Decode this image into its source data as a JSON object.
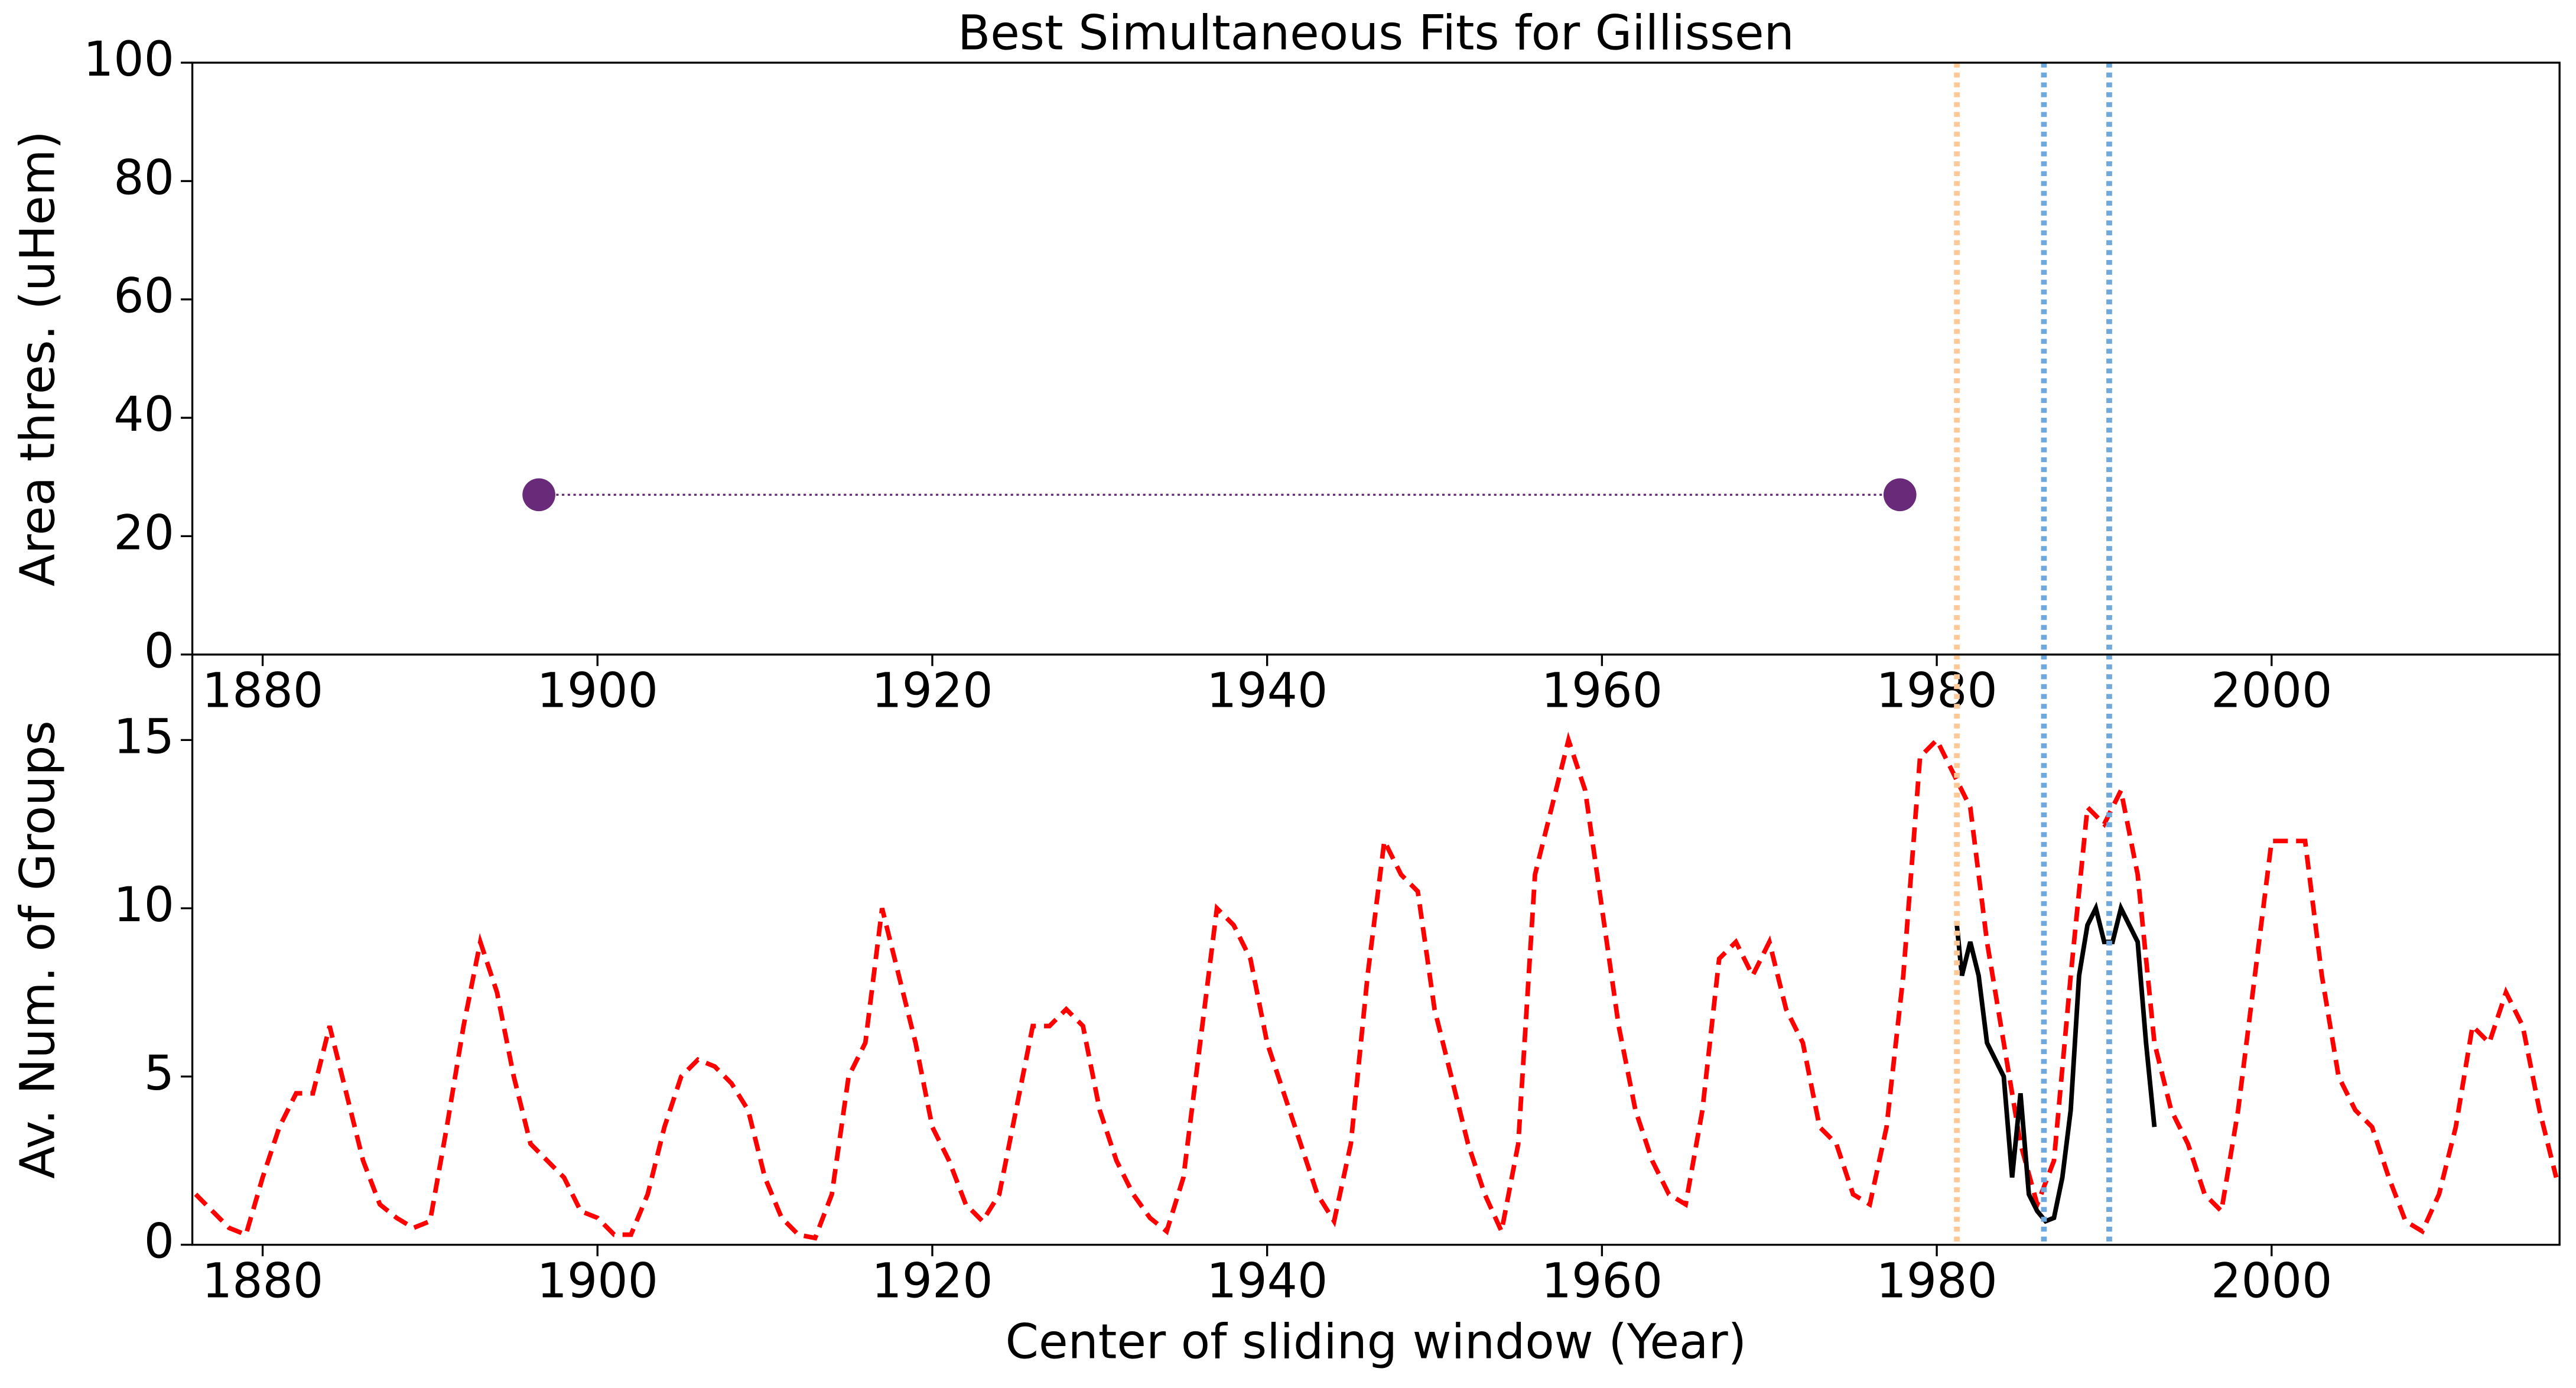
{
  "chart_data": [
    {
      "type": "line",
      "title": "Best Simultaneous Fits for Gillissen",
      "ylabel": "Area thres. (uHem)",
      "xlim": [
        1875.8,
        2017.2
      ],
      "xticks": [
        1880,
        1900,
        1920,
        1940,
        1960,
        1980,
        2000
      ],
      "ylim": [
        0,
        100
      ],
      "yticks": [
        0,
        20,
        40,
        60,
        80,
        100
      ],
      "series": [
        {
          "x": [
            1896.5,
            1977.8
          ],
          "values": [
            27,
            27
          ],
          "color": "#6a2a7a",
          "marker": true,
          "line_style": "dotted"
        }
      ],
      "vlines": [
        {
          "x": 1981.2,
          "color": "#ffc896"
        },
        {
          "x": 1986.4,
          "color": "#6fa8dc"
        },
        {
          "x": 1990.3,
          "color": "#6fa8dc"
        }
      ]
    },
    {
      "type": "line",
      "xlabel": "Center of sliding window (Year)",
      "ylabel": "Av. Num. of Groups",
      "xlim": [
        1875.8,
        2017.2
      ],
      "xticks": [
        1880,
        1900,
        1920,
        1940,
        1960,
        1980,
        2000
      ],
      "ylim": [
        0,
        17.54
      ],
      "yticks": [
        0,
        5,
        10,
        15
      ],
      "series": [
        {
          "x": [
            1876,
            1877,
            1878,
            1879,
            1880,
            1881,
            1882,
            1883,
            1884,
            1885,
            1886,
            1887,
            1888,
            1889,
            1890,
            1891,
            1892,
            1893,
            1894,
            1895,
            1896,
            1897,
            1898,
            1899,
            1900,
            1901,
            1902,
            1903,
            1904,
            1905,
            1906,
            1907,
            1908,
            1909,
            1910,
            1911,
            1912,
            1913,
            1914,
            1915,
            1916,
            1917,
            1918,
            1919,
            1920,
            1921,
            1922,
            1923,
            1924,
            1925,
            1926,
            1927,
            1928,
            1929,
            1930,
            1931,
            1932,
            1933,
            1934,
            1935,
            1936,
            1937,
            1938,
            1939,
            1940,
            1941,
            1942,
            1943,
            1944,
            1945,
            1946,
            1947,
            1948,
            1949,
            1950,
            1951,
            1952,
            1953,
            1954,
            1955,
            1956,
            1957,
            1958,
            1959,
            1960,
            1961,
            1962,
            1963,
            1964,
            1965,
            1966,
            1967,
            1968,
            1969,
            1970,
            1971,
            1972,
            1973,
            1974,
            1975,
            1976,
            1977,
            1978,
            1979,
            1980,
            1981,
            1982,
            1983,
            1984,
            1985,
            1986,
            1987,
            1988,
            1989,
            1990,
            1991,
            1992,
            1993,
            1994,
            1995,
            1996,
            1997,
            1998,
            1999,
            2000,
            2001,
            2002,
            2003,
            2004,
            2005,
            2006,
            2007,
            2008,
            2009,
            2010,
            2011,
            2012,
            2013,
            2014,
            2015,
            2016,
            2017
          ],
          "values": [
            1.5,
            1,
            0.5,
            0.3,
            2,
            3.5,
            4.5,
            4.5,
            6.5,
            4.5,
            2.5,
            1.2,
            0.8,
            0.5,
            0.7,
            3.5,
            6.5,
            9,
            7.5,
            5,
            3,
            2.5,
            2,
            1,
            0.8,
            0.3,
            0.3,
            1.5,
            3.5,
            5,
            5.5,
            5.3,
            4.8,
            4,
            2,
            0.8,
            0.3,
            0.2,
            1.5,
            5,
            6,
            10,
            8,
            6,
            3.5,
            2.5,
            1.2,
            0.7,
            1.5,
            4,
            6.5,
            6.5,
            7,
            6.5,
            4,
            2.5,
            1.5,
            0.8,
            0.4,
            2,
            6,
            10,
            9.5,
            8.5,
            6,
            4.5,
            3,
            1.5,
            0.7,
            3,
            8,
            12,
            11,
            10.5,
            7,
            5,
            3,
            1.5,
            0.4,
            3,
            11,
            13,
            15,
            13.5,
            10,
            6.5,
            4,
            2.5,
            1.5,
            1.2,
            4,
            8.5,
            9,
            8,
            9,
            7,
            6,
            3.5,
            3,
            1.5,
            1.2,
            3.5,
            8,
            14.5,
            15,
            14,
            13,
            9,
            6,
            3,
            1.2,
            2.5,
            8,
            13,
            12.5,
            13.5,
            11,
            6,
            4,
            3,
            1.5,
            1,
            4,
            8,
            12,
            12,
            12,
            8,
            5,
            4,
            3.5,
            2,
            0.7,
            0.4,
            1.5,
            3.5,
            6.5,
            6,
            7.5,
            6.5,
            4,
            2
          ],
          "color": "#ff0000",
          "line_style": "dashed"
        },
        {
          "x": [
            1981.2,
            1981.5,
            1982,
            1982.5,
            1983,
            1983.5,
            1984,
            1984.5,
            1985,
            1985.5,
            1986,
            1986.5,
            1987,
            1987.5,
            1988,
            1988.5,
            1989,
            1989.5,
            1990,
            1990.5,
            1991,
            1991.5,
            1992,
            1992.5,
            1993
          ],
          "values": [
            9.5,
            8,
            9,
            8,
            6,
            5.5,
            5,
            2,
            4.5,
            1.5,
            1,
            0.7,
            0.8,
            2,
            4,
            8,
            9.5,
            10,
            9,
            9,
            10,
            9.5,
            9,
            6,
            3.5
          ],
          "color": "#000000",
          "line_style": "solid"
        }
      ],
      "vlines": [
        {
          "x": 1981.2,
          "color": "#ffc896"
        },
        {
          "x": 1986.4,
          "color": "#6fa8dc"
        },
        {
          "x": 1990.3,
          "color": "#6fa8dc"
        }
      ]
    }
  ]
}
